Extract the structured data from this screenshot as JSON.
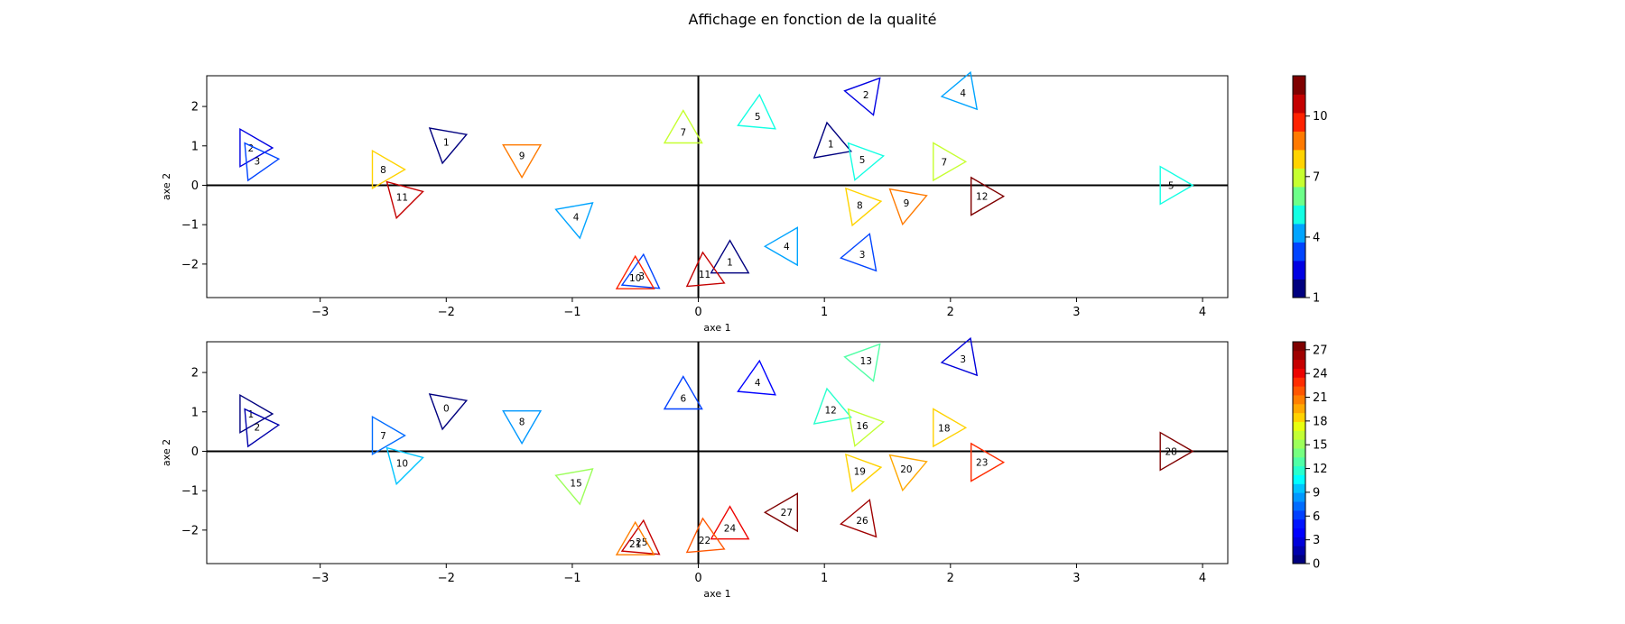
{
  "title": "Affichage en fonction de la qualité",
  "chart_data": [
    {
      "type": "scatter",
      "marker": "triangle",
      "xlabel": "axe 1",
      "ylabel": "axe 2",
      "xlim": [
        -3.9,
        4.2
      ],
      "ylim": [
        -2.85,
        2.78
      ],
      "xticks": [
        -3,
        -2,
        -1,
        0,
        1,
        2,
        3,
        4
      ],
      "xtick_labels": [
        "−3",
        "−2",
        "−1",
        "0",
        "1",
        "2",
        "3",
        "4"
      ],
      "yticks": [
        -2,
        -1,
        0,
        1,
        2
      ],
      "ytick_labels": [
        "−2",
        "−1",
        "0",
        "1",
        "2"
      ],
      "reference_lines": {
        "x": 0,
        "y": 0
      },
      "colorbar": {
        "vmin": 1,
        "vmax": 12,
        "ticks": [
          1,
          4,
          7,
          10
        ],
        "tick_labels": [
          "1",
          "4",
          "7",
          "10"
        ],
        "colors": [
          "#00007f",
          "#0000e2",
          "#0044ff",
          "#00a4ff",
          "#13ffe3",
          "#6dff89",
          "#c6ff30",
          "#ffd300",
          "#ff7a00",
          "#fe2200",
          "#c40000",
          "#7f0000"
        ]
      },
      "points": [
        {
          "x": -3.55,
          "y": 0.95,
          "label": "2",
          "value": 2,
          "rot": 0
        },
        {
          "x": -3.5,
          "y": 0.62,
          "label": "3",
          "value": 3,
          "rot": 5
        },
        {
          "x": -2.0,
          "y": 1.1,
          "label": "1",
          "value": 1,
          "rot": 20
        },
        {
          "x": -2.5,
          "y": 0.4,
          "label": "8",
          "value": 8,
          "rot": 0
        },
        {
          "x": -2.35,
          "y": -0.3,
          "label": "11",
          "value": 11,
          "rot": 15
        },
        {
          "x": -1.4,
          "y": 0.75,
          "label": "9",
          "value": 9,
          "rot": 30
        },
        {
          "x": -0.97,
          "y": -0.8,
          "label": "4",
          "value": 4,
          "rot": 40
        },
        {
          "x": -0.12,
          "y": 1.35,
          "label": "7",
          "value": 7,
          "rot": 90
        },
        {
          "x": 0.47,
          "y": 1.75,
          "label": "5",
          "value": 5,
          "rot": 85
        },
        {
          "x": 1.05,
          "y": 1.05,
          "label": "1",
          "value": 1,
          "rot": -20
        },
        {
          "x": 1.33,
          "y": 2.3,
          "label": "2",
          "value": 2,
          "rot": -70
        },
        {
          "x": 1.3,
          "y": 0.65,
          "label": "5",
          "value": 5,
          "rot": 10
        },
        {
          "x": 2.1,
          "y": 2.35,
          "label": "4",
          "value": 4,
          "rot": -50
        },
        {
          "x": 1.95,
          "y": 0.6,
          "label": "7",
          "value": 7,
          "rot": 0
        },
        {
          "x": 1.28,
          "y": -0.5,
          "label": "8",
          "value": 8,
          "rot": 10
        },
        {
          "x": 1.65,
          "y": -0.45,
          "label": "9",
          "value": 9,
          "rot": 20
        },
        {
          "x": 2.25,
          "y": -0.28,
          "label": "12",
          "value": 12,
          "rot": 0
        },
        {
          "x": 3.75,
          "y": 0.0,
          "label": "5",
          "value": 5,
          "rot": 0
        },
        {
          "x": 0.7,
          "y": -1.55,
          "label": "4",
          "value": 4,
          "rot": 60
        },
        {
          "x": 1.3,
          "y": -1.75,
          "label": "3",
          "value": 3,
          "rot": -50
        },
        {
          "x": 0.25,
          "y": -1.95,
          "label": "1",
          "value": 1,
          "rot": 90
        },
        {
          "x": 0.05,
          "y": -2.25,
          "label": "11",
          "value": 11,
          "rot": 95
        },
        {
          "x": -0.45,
          "y": -2.3,
          "label": "3",
          "value": 3,
          "rot": 85
        },
        {
          "x": -0.5,
          "y": -2.35,
          "label": "10",
          "value": 10,
          "rot": 90
        }
      ]
    },
    {
      "type": "scatter",
      "marker": "triangle",
      "xlabel": "axe 1",
      "ylabel": "axe 2",
      "xlim": [
        -3.9,
        4.2
      ],
      "ylim": [
        -2.85,
        2.78
      ],
      "xticks": [
        -3,
        -2,
        -1,
        0,
        1,
        2,
        3,
        4
      ],
      "xtick_labels": [
        "−3",
        "−2",
        "−1",
        "0",
        "1",
        "2",
        "3",
        "4"
      ],
      "yticks": [
        -2,
        -1,
        0,
        1,
        2
      ],
      "ytick_labels": [
        "−2",
        "−1",
        "0",
        "1",
        "2"
      ],
      "reference_lines": {
        "x": 0,
        "y": 0
      },
      "colorbar": {
        "vmin": 0,
        "vmax": 28,
        "ticks": [
          0,
          3,
          6,
          9,
          12,
          15,
          18,
          21,
          24,
          27
        ],
        "tick_labels": [
          "0",
          "3",
          "6",
          "9",
          "12",
          "15",
          "18",
          "21",
          "24",
          "27"
        ],
        "colors": [
          "#00007f",
          "#0000ac",
          "#0000da",
          "#0000ff",
          "#0014ff",
          "#0040ff",
          "#006cff",
          "#0098ff",
          "#00c4ff",
          "#0ff",
          "#29ffcd",
          "#50ffa6",
          "#76ff80",
          "#9cff5a",
          "#c2ff34",
          "#e8ff0e",
          "#ffd200",
          "#ffa800",
          "#ff7f00",
          "#ff5600",
          "#ff2c00",
          "#ed0300",
          "#c60000",
          "#9f0000",
          "#7f0000"
        ]
      },
      "points": [
        {
          "x": -3.55,
          "y": 0.95,
          "label": "1",
          "value": 1,
          "rot": 0
        },
        {
          "x": -3.5,
          "y": 0.62,
          "label": "2",
          "value": 2,
          "rot": 5
        },
        {
          "x": -2.0,
          "y": 1.1,
          "label": "0",
          "value": 0,
          "rot": 20
        },
        {
          "x": -2.5,
          "y": 0.4,
          "label": "7",
          "value": 7,
          "rot": 0
        },
        {
          "x": -2.35,
          "y": -0.3,
          "label": "10",
          "value": 10,
          "rot": 15
        },
        {
          "x": -1.4,
          "y": 0.75,
          "label": "8",
          "value": 8,
          "rot": 30
        },
        {
          "x": -0.97,
          "y": -0.8,
          "label": "15",
          "value": 15,
          "rot": 40
        },
        {
          "x": -0.12,
          "y": 1.35,
          "label": "6",
          "value": 6,
          "rot": 90
        },
        {
          "x": 0.47,
          "y": 1.75,
          "label": "4",
          "value": 4,
          "rot": 85
        },
        {
          "x": 1.05,
          "y": 1.05,
          "label": "12",
          "value": 12,
          "rot": -20
        },
        {
          "x": 1.33,
          "y": 2.3,
          "label": "13",
          "value": 13,
          "rot": -70
        },
        {
          "x": 1.3,
          "y": 0.65,
          "label": "16",
          "value": 16,
          "rot": 10
        },
        {
          "x": 2.1,
          "y": 2.35,
          "label": "3",
          "value": 3,
          "rot": -50
        },
        {
          "x": 1.95,
          "y": 0.6,
          "label": "18",
          "value": 18,
          "rot": 0
        },
        {
          "x": 1.28,
          "y": -0.5,
          "label": "19",
          "value": 19,
          "rot": 10
        },
        {
          "x": 1.65,
          "y": -0.45,
          "label": "20",
          "value": 20,
          "rot": 20
        },
        {
          "x": 2.25,
          "y": -0.28,
          "label": "23",
          "value": 23,
          "rot": 0
        },
        {
          "x": 3.75,
          "y": 0.0,
          "label": "28",
          "value": 28,
          "rot": 0
        },
        {
          "x": 0.7,
          "y": -1.55,
          "label": "27",
          "value": 27,
          "rot": 60
        },
        {
          "x": 1.3,
          "y": -1.75,
          "label": "26",
          "value": 26,
          "rot": -50
        },
        {
          "x": 0.25,
          "y": -1.95,
          "label": "24",
          "value": 24,
          "rot": 90
        },
        {
          "x": 0.05,
          "y": -2.25,
          "label": "22",
          "value": 22,
          "rot": 95
        },
        {
          "x": -0.45,
          "y": -2.3,
          "label": "25",
          "value": 25,
          "rot": 85
        },
        {
          "x": -0.5,
          "y": -2.35,
          "label": "21",
          "value": 21,
          "rot": 90
        }
      ]
    }
  ]
}
